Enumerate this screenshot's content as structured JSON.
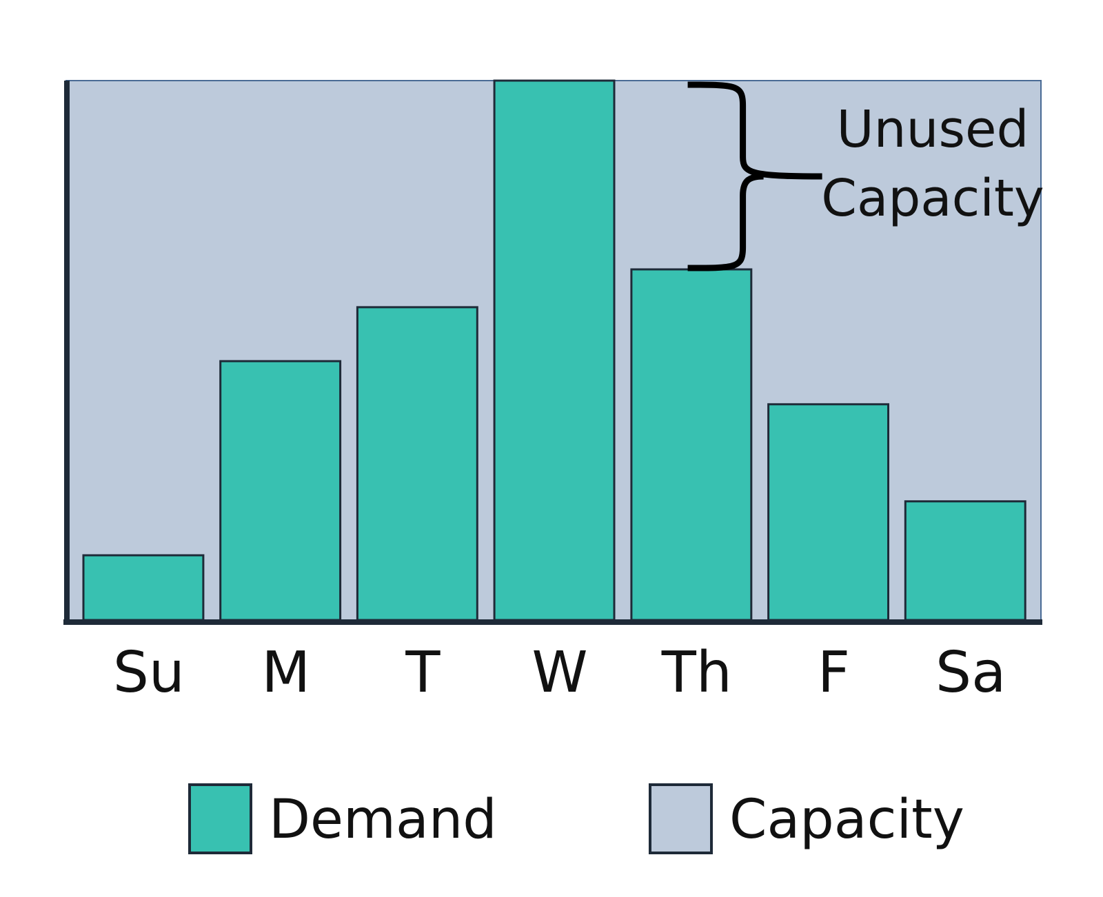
{
  "chart_data": {
    "type": "bar",
    "categories": [
      "Su",
      "M",
      "T",
      "W",
      "Th",
      "F",
      "Sa"
    ],
    "series": [
      {
        "name": "Demand",
        "values": [
          12,
          48,
          58,
          100,
          65,
          40,
          22
        ]
      }
    ],
    "capacity": 100,
    "ylim": [
      0,
      100
    ],
    "title": "",
    "xlabel": "",
    "ylabel": "",
    "grid": false,
    "legend_position": "bottom",
    "legend": [
      {
        "label": "Demand",
        "color": "#38c1b1"
      },
      {
        "label": "Capacity",
        "color": "#bdcadb"
      }
    ],
    "annotation": {
      "text_lines": [
        "Unused",
        "Capacity"
      ],
      "category": "Th",
      "from_value": 65,
      "to_value": 100
    }
  },
  "colors": {
    "demand": "#38c1b1",
    "capacity": "#bdcadb",
    "outline": "#1e2a38",
    "text": "#111111"
  }
}
